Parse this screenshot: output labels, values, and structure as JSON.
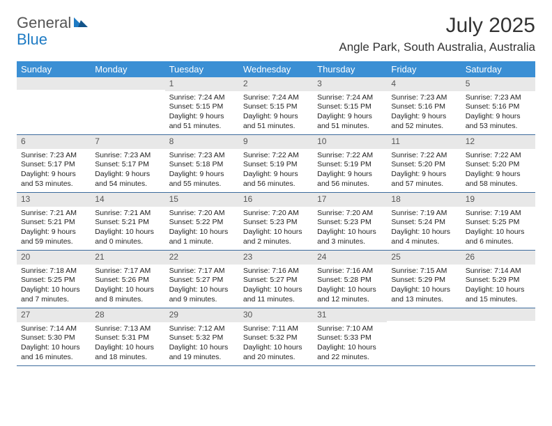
{
  "brand": {
    "general": "General",
    "blue": "Blue"
  },
  "title": "July 2025",
  "location": "Angle Park, South Australia, Australia",
  "colors": {
    "header_bg": "#3b8fd4",
    "header_text": "#ffffff",
    "date_row_bg": "#e8e8e8",
    "week_border": "#3b6a9c",
    "logo_blue": "#1e7bc4",
    "logo_gray": "#555555",
    "body_text": "#222222"
  },
  "day_names": [
    "Sunday",
    "Monday",
    "Tuesday",
    "Wednesday",
    "Thursday",
    "Friday",
    "Saturday"
  ],
  "weeks": [
    [
      null,
      null,
      {
        "d": "1",
        "sr": "7:24 AM",
        "ss": "5:15 PM",
        "dl": "9 hours and 51 minutes."
      },
      {
        "d": "2",
        "sr": "7:24 AM",
        "ss": "5:15 PM",
        "dl": "9 hours and 51 minutes."
      },
      {
        "d": "3",
        "sr": "7:24 AM",
        "ss": "5:15 PM",
        "dl": "9 hours and 51 minutes."
      },
      {
        "d": "4",
        "sr": "7:23 AM",
        "ss": "5:16 PM",
        "dl": "9 hours and 52 minutes."
      },
      {
        "d": "5",
        "sr": "7:23 AM",
        "ss": "5:16 PM",
        "dl": "9 hours and 53 minutes."
      }
    ],
    [
      {
        "d": "6",
        "sr": "7:23 AM",
        "ss": "5:17 PM",
        "dl": "9 hours and 53 minutes."
      },
      {
        "d": "7",
        "sr": "7:23 AM",
        "ss": "5:17 PM",
        "dl": "9 hours and 54 minutes."
      },
      {
        "d": "8",
        "sr": "7:23 AM",
        "ss": "5:18 PM",
        "dl": "9 hours and 55 minutes."
      },
      {
        "d": "9",
        "sr": "7:22 AM",
        "ss": "5:19 PM",
        "dl": "9 hours and 56 minutes."
      },
      {
        "d": "10",
        "sr": "7:22 AM",
        "ss": "5:19 PM",
        "dl": "9 hours and 56 minutes."
      },
      {
        "d": "11",
        "sr": "7:22 AM",
        "ss": "5:20 PM",
        "dl": "9 hours and 57 minutes."
      },
      {
        "d": "12",
        "sr": "7:22 AM",
        "ss": "5:20 PM",
        "dl": "9 hours and 58 minutes."
      }
    ],
    [
      {
        "d": "13",
        "sr": "7:21 AM",
        "ss": "5:21 PM",
        "dl": "9 hours and 59 minutes."
      },
      {
        "d": "14",
        "sr": "7:21 AM",
        "ss": "5:21 PM",
        "dl": "10 hours and 0 minutes."
      },
      {
        "d": "15",
        "sr": "7:20 AM",
        "ss": "5:22 PM",
        "dl": "10 hours and 1 minute."
      },
      {
        "d": "16",
        "sr": "7:20 AM",
        "ss": "5:23 PM",
        "dl": "10 hours and 2 minutes."
      },
      {
        "d": "17",
        "sr": "7:20 AM",
        "ss": "5:23 PM",
        "dl": "10 hours and 3 minutes."
      },
      {
        "d": "18",
        "sr": "7:19 AM",
        "ss": "5:24 PM",
        "dl": "10 hours and 4 minutes."
      },
      {
        "d": "19",
        "sr": "7:19 AM",
        "ss": "5:25 PM",
        "dl": "10 hours and 6 minutes."
      }
    ],
    [
      {
        "d": "20",
        "sr": "7:18 AM",
        "ss": "5:25 PM",
        "dl": "10 hours and 7 minutes."
      },
      {
        "d": "21",
        "sr": "7:17 AM",
        "ss": "5:26 PM",
        "dl": "10 hours and 8 minutes."
      },
      {
        "d": "22",
        "sr": "7:17 AM",
        "ss": "5:27 PM",
        "dl": "10 hours and 9 minutes."
      },
      {
        "d": "23",
        "sr": "7:16 AM",
        "ss": "5:27 PM",
        "dl": "10 hours and 11 minutes."
      },
      {
        "d": "24",
        "sr": "7:16 AM",
        "ss": "5:28 PM",
        "dl": "10 hours and 12 minutes."
      },
      {
        "d": "25",
        "sr": "7:15 AM",
        "ss": "5:29 PM",
        "dl": "10 hours and 13 minutes."
      },
      {
        "d": "26",
        "sr": "7:14 AM",
        "ss": "5:29 PM",
        "dl": "10 hours and 15 minutes."
      }
    ],
    [
      {
        "d": "27",
        "sr": "7:14 AM",
        "ss": "5:30 PM",
        "dl": "10 hours and 16 minutes."
      },
      {
        "d": "28",
        "sr": "7:13 AM",
        "ss": "5:31 PM",
        "dl": "10 hours and 18 minutes."
      },
      {
        "d": "29",
        "sr": "7:12 AM",
        "ss": "5:32 PM",
        "dl": "10 hours and 19 minutes."
      },
      {
        "d": "30",
        "sr": "7:11 AM",
        "ss": "5:32 PM",
        "dl": "10 hours and 20 minutes."
      },
      {
        "d": "31",
        "sr": "7:10 AM",
        "ss": "5:33 PM",
        "dl": "10 hours and 22 minutes."
      },
      null,
      null
    ]
  ],
  "labels": {
    "sunrise": "Sunrise:",
    "sunset": "Sunset:",
    "daylight": "Daylight:"
  }
}
